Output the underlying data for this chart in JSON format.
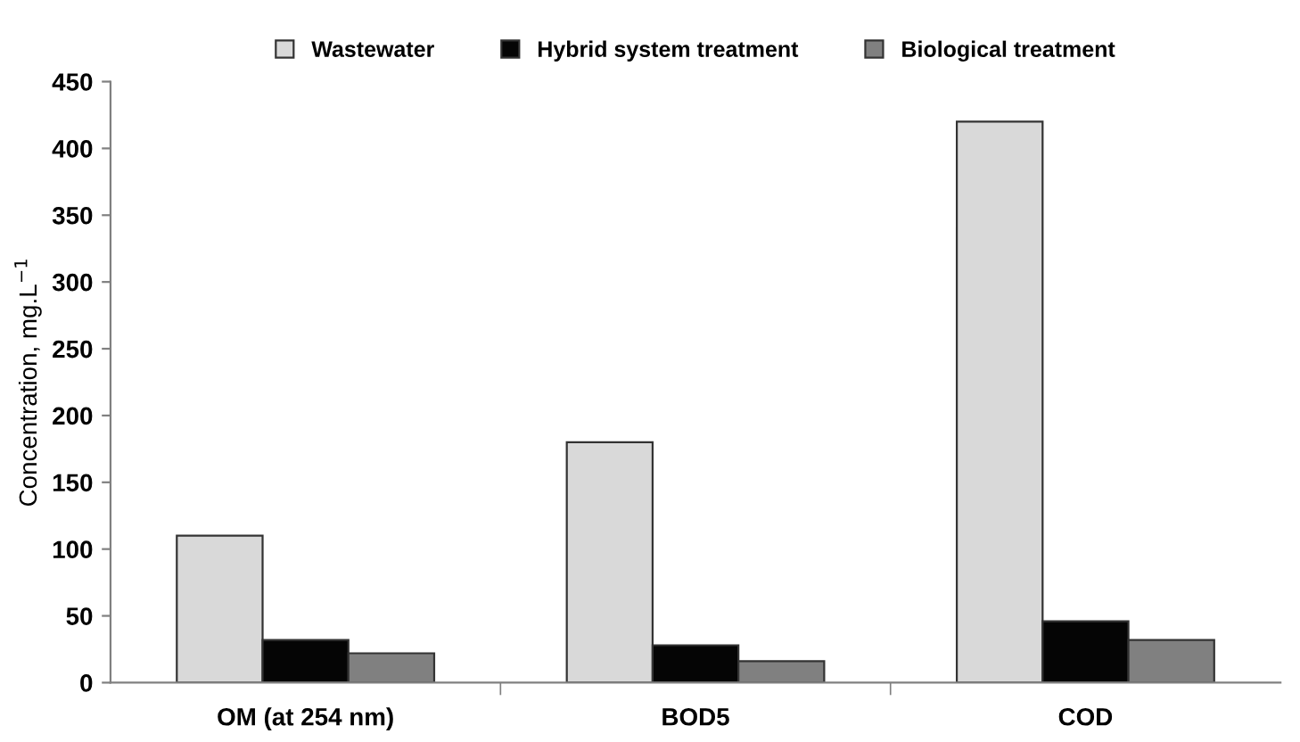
{
  "chart_data": {
    "type": "bar",
    "ylabel": "Concentration, mg.L$^{−1}$",
    "categories": [
      "OM (at 254 nm)",
      "BOD5",
      "COD"
    ],
    "series": [
      {
        "name": "Wastewater",
        "color": "#d9d9d9",
        "values": [
          110,
          180,
          420
        ]
      },
      {
        "name": "Hybrid system treatment",
        "color": "#050505",
        "values": [
          32,
          28,
          46
        ]
      },
      {
        "name": "Biological treatment",
        "color": "#808080",
        "values": [
          22,
          16,
          32
        ]
      }
    ],
    "ylim": [
      0,
      450
    ],
    "yticks": [
      0,
      50,
      100,
      150,
      200,
      250,
      300,
      350,
      400,
      450
    ],
    "grid": false,
    "legend": "top"
  }
}
